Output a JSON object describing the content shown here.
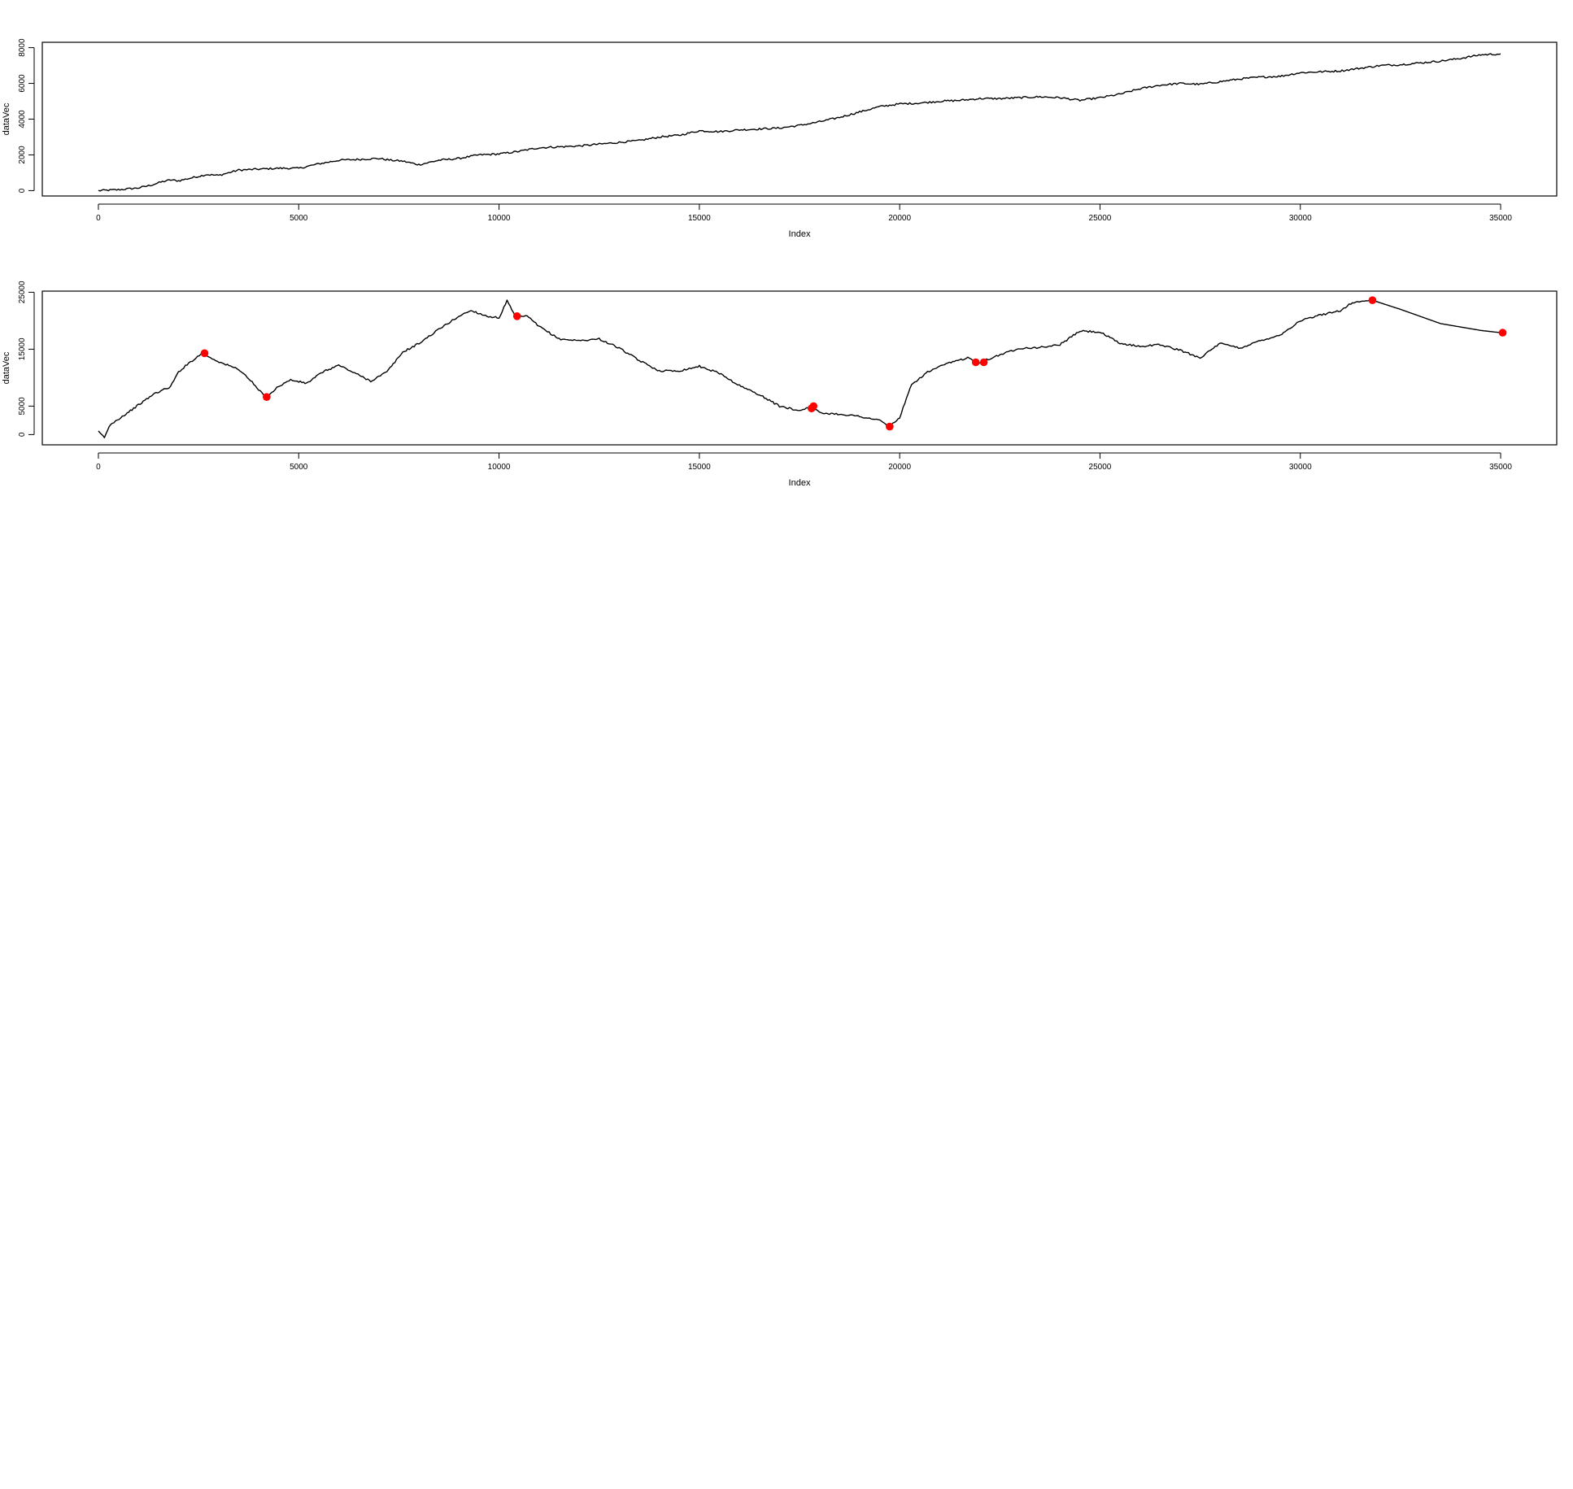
{
  "chart_data": [
    {
      "type": "line",
      "title": "",
      "xlabel": "Index",
      "ylabel": "dataVec",
      "xlim": [
        -1400,
        36400
      ],
      "ylim": [
        -300,
        8300
      ],
      "x_ticks": [
        0,
        5000,
        10000,
        15000,
        20000,
        25000,
        30000,
        35000
      ],
      "x_tick_labels": [
        "0",
        "5000",
        "10000",
        "15000",
        "20000",
        "25000",
        "30000",
        "35000"
      ],
      "y_ticks": [
        0,
        2000,
        4000,
        6000,
        8000
      ],
      "y_tick_labels": [
        "0",
        "2000",
        "4000",
        "6000",
        "8000"
      ],
      "grid": false,
      "line_color": "#000000",
      "series": [
        {
          "x": [
            0,
            500,
            1000,
            1300,
            1600,
            1800,
            2000,
            2300,
            2700,
            3000,
            3500,
            4000,
            4500,
            5000,
            5500,
            6000,
            6500,
            7000,
            7300,
            7600,
            8000,
            8500,
            9000,
            9500,
            10000,
            10500,
            11000,
            11500,
            12000,
            12500,
            13000,
            13500,
            14000,
            14500,
            15000,
            15500,
            16000,
            16500,
            17000,
            17500,
            18000,
            18500,
            19000,
            19500,
            20000,
            20500,
            21000,
            21500,
            22000,
            22500,
            23000,
            23500,
            24000,
            24500,
            25000,
            25500,
            26000,
            26500,
            27000,
            27500,
            28000,
            28500,
            29000,
            29500,
            30000,
            30500,
            31000,
            31500,
            32000,
            32500,
            33000,
            33500,
            34000,
            34500,
            35000
          ],
          "y": [
            0,
            50,
            150,
            300,
            500,
            600,
            550,
            700,
            900,
            850,
            1150,
            1200,
            1250,
            1250,
            1500,
            1700,
            1750,
            1800,
            1700,
            1650,
            1450,
            1700,
            1800,
            2000,
            2050,
            2200,
            2400,
            2450,
            2500,
            2600,
            2700,
            2800,
            3000,
            3100,
            3350,
            3300,
            3400,
            3450,
            3500,
            3650,
            3850,
            4100,
            4400,
            4700,
            4850,
            4900,
            5000,
            5050,
            5150,
            5150,
            5200,
            5250,
            5200,
            5050,
            5200,
            5400,
            5700,
            5900,
            6000,
            5950,
            6100,
            6250,
            6350,
            6400,
            6600,
            6650,
            6700,
            6850,
            7000,
            7050,
            7150,
            7250,
            7400,
            7600,
            7650
          ]
        }
      ]
    },
    {
      "type": "line",
      "title": "",
      "xlabel": "Index",
      "ylabel": "dataVec",
      "xlim": [
        -1400,
        36400
      ],
      "ylim": [
        -1800,
        25200
      ],
      "x_ticks": [
        0,
        5000,
        10000,
        15000,
        20000,
        25000,
        30000,
        35000
      ],
      "x_tick_labels": [
        "0",
        "5000",
        "10000",
        "15000",
        "20000",
        "25000",
        "30000",
        "35000"
      ],
      "y_ticks": [
        0,
        5000,
        15000,
        25000
      ],
      "y_tick_labels": [
        "0",
        "5000",
        "15000",
        "25000"
      ],
      "grid": false,
      "line_color": "#000000",
      "marker_color": "#ff0000",
      "series": [
        {
          "x": [
            0,
            150,
            300,
            600,
            1000,
            1400,
            1800,
            2000,
            2300,
            2600,
            2800,
            3100,
            3500,
            3800,
            4000,
            4200,
            4500,
            4800,
            5200,
            5600,
            6000,
            6400,
            6800,
            7200,
            7600,
            8000,
            8500,
            9000,
            9300,
            9700,
            10000,
            10200,
            10400,
            10700,
            11000,
            11500,
            12000,
            12500,
            13000,
            13500,
            14000,
            14500,
            15000,
            15500,
            16000,
            16500,
            17000,
            17500,
            17800,
            18000,
            18500,
            19000,
            19500,
            19750,
            20000,
            20300,
            20700,
            21200,
            21700,
            22000,
            22500,
            23000,
            23500,
            24000,
            24500,
            25000,
            25500,
            26000,
            26500,
            27000,
            27500,
            28000,
            28500,
            29000,
            29500,
            30000,
            30500,
            31000,
            31300,
            31800,
            32500,
            33500,
            34500,
            35000
          ],
          "y": [
            500,
            -500,
            1800,
            3200,
            5200,
            7200,
            8400,
            11000,
            12800,
            14300,
            13500,
            12500,
            11500,
            9500,
            7800,
            6600,
            8500,
            9600,
            9000,
            11000,
            12200,
            10800,
            9400,
            11000,
            14500,
            16000,
            18500,
            20800,
            21800,
            20800,
            20500,
            23500,
            20800,
            20800,
            19000,
            16800,
            16500,
            16800,
            15200,
            13000,
            11200,
            11200,
            12000,
            10800,
            8600,
            7000,
            5000,
            4200,
            5000,
            3800,
            3600,
            3200,
            2500,
            1400,
            3000,
            8800,
            11000,
            12500,
            13500,
            12700,
            14000,
            15200,
            15300,
            15800,
            18200,
            18000,
            16000,
            15500,
            15800,
            14800,
            13500,
            16000,
            15200,
            16500,
            17500,
            20000,
            21000,
            21800,
            23200,
            23600,
            22000,
            19500,
            18300,
            17900
          ]
        }
      ],
      "points": {
        "x": [
          2650,
          4200,
          10450,
          17800,
          17850,
          19750,
          21900,
          22100,
          31800,
          35050
        ],
        "y": [
          14300,
          6600,
          20800,
          4600,
          5000,
          1400,
          12700,
          12700,
          23600,
          17900
        ]
      }
    }
  ]
}
